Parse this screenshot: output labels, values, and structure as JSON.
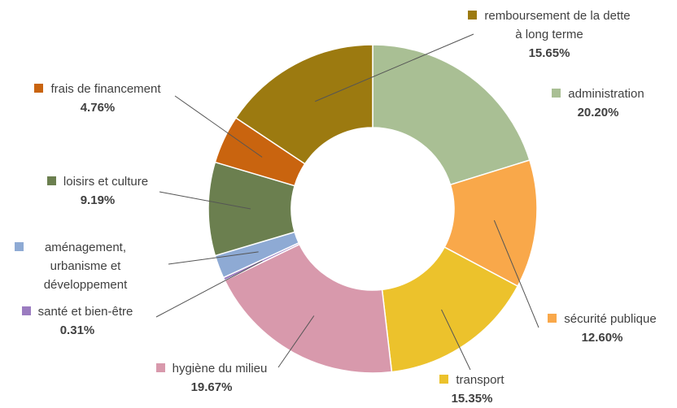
{
  "chart_data": {
    "type": "donut",
    "categories": [
      "administration",
      "sécurité publique",
      "transport",
      "hygiène du milieu",
      "santé et bien-être",
      "aménagement, urbanisme et développement",
      "loisirs et culture",
      "frais de financement",
      "remboursement de la dette à long terme"
    ],
    "values": [
      20.2,
      12.6,
      15.35,
      19.67,
      0.31,
      2.27,
      9.19,
      4.76,
      15.65
    ],
    "value_labels": [
      "20.20%",
      "12.60%",
      "15.35%",
      "19.67%",
      "0.31%",
      null,
      "9.19%",
      "4.76%",
      "15.65%"
    ],
    "colors": [
      "#a9bf94",
      "#f9a84a",
      "#ecc22c",
      "#d899ac",
      "#9b7cc0",
      "#8eaad4",
      "#6b7f4f",
      "#c9640f",
      "#9c7a10"
    ]
  }
}
